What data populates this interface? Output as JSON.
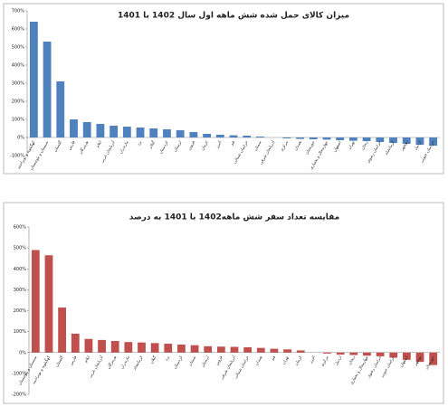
{
  "chart_data": [
    {
      "type": "bar",
      "title": "میزان کالای حمل شده شش ماهه اول سال 1402 با 1401",
      "color": "#4f81bd",
      "grid": false,
      "categories": [
        "کهگیلویه و بویراحمد",
        "سیستان و بلوچستان",
        "گلستان",
        "فارس",
        "هرمزگان",
        "ایلام",
        "آذربایجان غربی",
        "مازندران",
        "یزد",
        "گیلان",
        "کردستان",
        "لرستان",
        "قزوین",
        "کرمان",
        "البرز",
        "قم",
        "خراسان شمالی",
        "سمنان",
        "آذربایجان شرقی",
        "مرکزی",
        "همدان",
        "خوزستان",
        "چهارمحال و بختیاری",
        "اصفهان",
        "تهران",
        "زنجان",
        "خراسان رضوی",
        "کرمانشاه",
        "بوشهر",
        "اردبیل",
        "خراسان جنوبی"
      ],
      "values": [
        640,
        530,
        310,
        100,
        85,
        75,
        65,
        60,
        55,
        50,
        45,
        40,
        30,
        20,
        15,
        12,
        10,
        5,
        0,
        -5,
        -8,
        -10,
        -12,
        -15,
        -18,
        -20,
        -25,
        -30,
        -35,
        -40,
        -45
      ],
      "ylim": [
        -100,
        700
      ],
      "yticks": [
        {
          "value": -100,
          "label": "-100%"
        },
        {
          "value": 0,
          "label": "0%"
        },
        {
          "value": 100,
          "label": "100%"
        },
        {
          "value": 200,
          "label": "200%"
        },
        {
          "value": 300,
          "label": "300%"
        },
        {
          "value": 400,
          "label": "400%"
        },
        {
          "value": 500,
          "label": "500%"
        },
        {
          "value": 600,
          "label": "600%"
        },
        {
          "value": 700,
          "label": "700%"
        }
      ]
    },
    {
      "type": "bar",
      "title": "مقایسه تعداد سفر شش ماهه1402 با 1401 به درصد",
      "color": "#c0504d",
      "grid": false,
      "categories": [
        "سیستان و بلوچستان",
        "کهگیلویه و بویراحمد",
        "گلستان",
        "فارس",
        "ایلام",
        "آذربایجان غربی",
        "هرمزگان",
        "مازندران",
        "کرمانشاه",
        "گیلان",
        "یزد",
        "کردستان",
        "سمنان",
        "لرستان",
        "قزوین",
        "آذربایجان شرقی",
        "خراسان شمالی",
        "همدان",
        "قم",
        "تهران",
        "کرمان",
        "البرز",
        "مرکزی",
        "اردبیل",
        "زنجان",
        "چهارمحال و بختیاری",
        "خراسان رضوی",
        "خراسان جنوبی",
        "اصفهان",
        "بوشهر",
        "خوزستان"
      ],
      "values": [
        490,
        465,
        215,
        90,
        65,
        60,
        55,
        50,
        48,
        45,
        42,
        38,
        35,
        30,
        28,
        27,
        25,
        22,
        18,
        15,
        10,
        0,
        -5,
        -10,
        -12,
        -15,
        -18,
        -25,
        -35,
        -45,
        -60
      ],
      "ylim": [
        -200,
        600
      ],
      "yticks": [
        {
          "value": -200,
          "label": "-200%"
        },
        {
          "value": -100,
          "label": "-100%"
        },
        {
          "value": 0,
          "label": "0%"
        },
        {
          "value": 100,
          "label": "100%"
        },
        {
          "value": 200,
          "label": "200%"
        },
        {
          "value": 300,
          "label": "300%"
        },
        {
          "value": 400,
          "label": "400%"
        },
        {
          "value": 500,
          "label": "500%"
        },
        {
          "value": 600,
          "label": "600%"
        }
      ]
    }
  ]
}
